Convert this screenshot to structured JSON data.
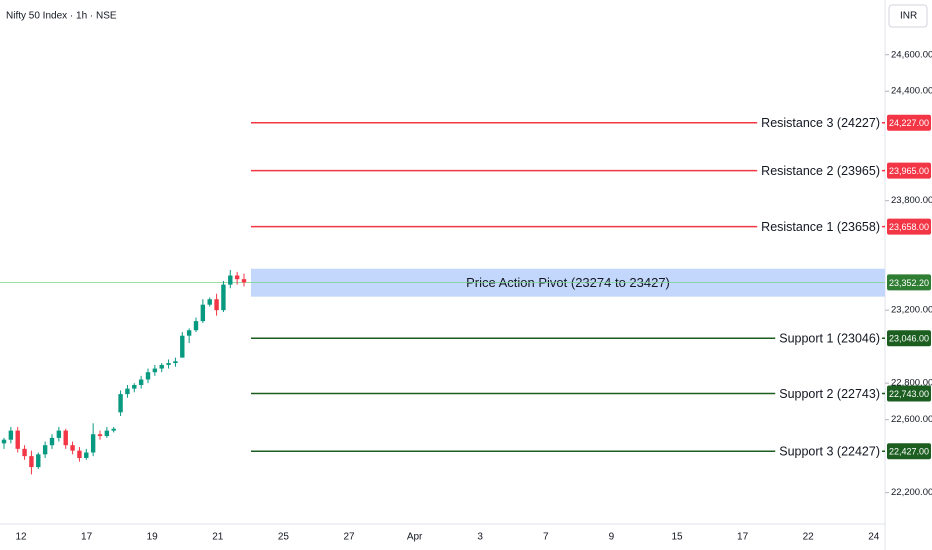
{
  "chart_data": {
    "type": "candlestick",
    "title": "Nifty 50 Index · 1h · NSE",
    "currency": "INR",
    "categories": [
      "12",
      "17",
      "19",
      "21",
      "25",
      "27",
      "Apr",
      "3",
      "7",
      "9",
      "15",
      "17",
      "22",
      "24"
    ],
    "candles": {
      "open": [
        22470,
        22490,
        22540,
        22440,
        22400,
        22340,
        22410,
        22460,
        22500,
        22540,
        22460,
        22430,
        22390,
        22420,
        22520,
        22510,
        22540,
        22640,
        22740,
        22770,
        22790,
        22820,
        22860,
        22880,
        22900,
        22910,
        22940,
        23060,
        23090,
        23140,
        23230,
        23260,
        23200,
        23340,
        23390,
        23370
      ],
      "high": [
        22500,
        22560,
        22560,
        22460,
        22430,
        22420,
        22480,
        22520,
        22560,
        22550,
        22480,
        22450,
        22440,
        22580,
        22540,
        22560,
        22560,
        22760,
        22790,
        22800,
        22840,
        22880,
        22900,
        22910,
        22930,
        22940,
        23080,
        23100,
        23160,
        23260,
        23270,
        23290,
        23360,
        23420,
        23410,
        23400
      ],
      "low": [
        22440,
        22470,
        22420,
        22380,
        22300,
        22330,
        22390,
        22440,
        22480,
        22440,
        22410,
        22370,
        22380,
        22400,
        22490,
        22500,
        22530,
        22620,
        22720,
        22750,
        22770,
        22800,
        22840,
        22860,
        22880,
        22890,
        22940,
        23020,
        23080,
        23130,
        23220,
        23170,
        23190,
        23320,
        23340,
        23330
      ],
      "close": [
        22490,
        22540,
        22440,
        22400,
        22340,
        22410,
        22460,
        22500,
        22540,
        22460,
        22430,
        22390,
        22420,
        22520,
        22510,
        22540,
        22550,
        22740,
        22770,
        22790,
        22820,
        22860,
        22880,
        22900,
        22910,
        22920,
        23060,
        23090,
        23140,
        23230,
        23260,
        23200,
        23340,
        23390,
        23370,
        23352.2
      ]
    },
    "up_color": "#089981",
    "down_color": "#f23645",
    "levels": [
      {
        "label": "Resistance 3 (24227)",
        "value": 24227,
        "value_label": "24,227.00",
        "color": "#f23645"
      },
      {
        "label": "Resistance 2 (23965)",
        "value": 23965,
        "value_label": "23,965.00",
        "color": "#f23645"
      },
      {
        "label": "Resistance 1 (23658)",
        "value": 23658,
        "value_label": "23,658.00",
        "color": "#f23645"
      },
      {
        "label": "Support 1 (23046)",
        "value": 23046,
        "value_label": "23,046.00",
        "color": "#1b5e20"
      },
      {
        "label": "Support 2 (22743)",
        "value": 22743,
        "value_label": "22,743.00",
        "color": "#1b5e20"
      },
      {
        "label": "Support 3 (22427)",
        "value": 22427,
        "value_label": "22,427.00",
        "color": "#1b5e20"
      }
    ],
    "pivot": {
      "label": "Price Action Pivot (23274 to 23427)",
      "low": 23274,
      "high": 23427,
      "color": "#bcd1fb"
    },
    "last_price": {
      "value": 23352.2,
      "label": "23,352.20",
      "color": "#2e7d32"
    },
    "ylim": [
      22050,
      24900
    ],
    "yticks": [
      {
        "value": 22200,
        "label": "22,200.00"
      },
      {
        "value": 22600,
        "label": "22,600.00"
      },
      {
        "value": 22800,
        "label": "22,800.00"
      },
      {
        "value": 23200,
        "label": "23,200.00"
      },
      {
        "value": 23800,
        "label": "23,800.00"
      },
      {
        "value": 24400,
        "label": "24,400.00"
      },
      {
        "value": 24600,
        "label": "24,600.00"
      }
    ]
  }
}
